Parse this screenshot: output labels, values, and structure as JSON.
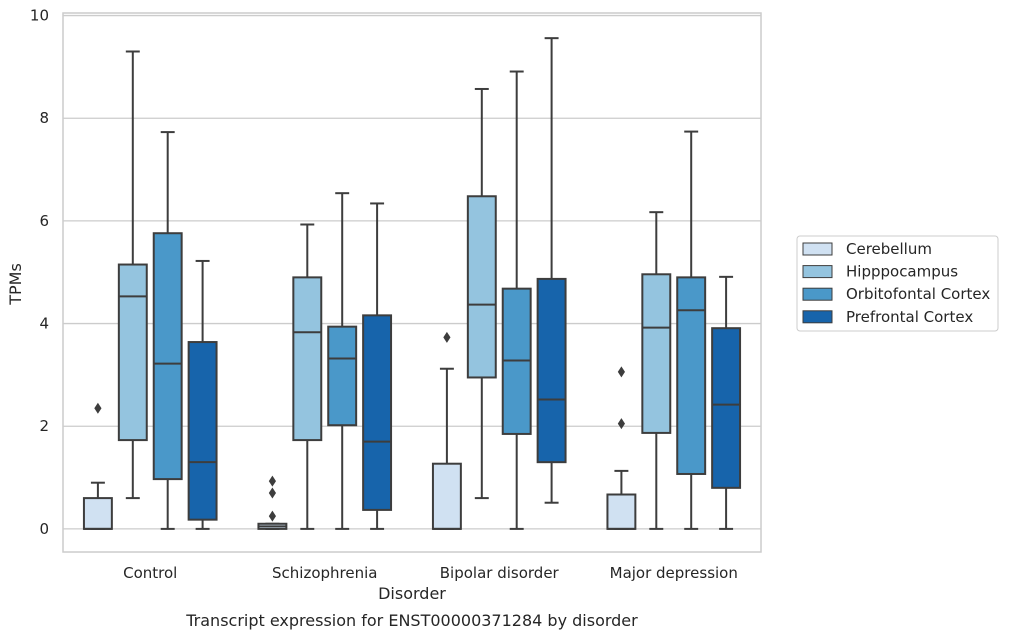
{
  "chart_data": {
    "type": "box",
    "title": "",
    "caption": "Transcript expression for ENST00000371284 by disorder",
    "xlabel": "Disorder",
    "ylabel": "TPMs",
    "ylim": [
      -0.45,
      10.05
    ],
    "yticks": [
      0,
      2,
      4,
      6,
      8,
      10
    ],
    "grid": "horizontal",
    "legend_placement": "right",
    "categories": [
      "Control",
      "Schizophrenia",
      "Bipolar disorder",
      "Major depression"
    ],
    "series": [
      {
        "name": "Cerebellum",
        "color": "#d0e1f2",
        "boxes": [
          {
            "whisker_low": 0,
            "q1": 0,
            "median": 0,
            "q3": 0.6,
            "whisker_high": 0.9,
            "outliers": [
              2.35
            ]
          },
          {
            "whisker_low": 0,
            "q1": 0,
            "median": 0.05,
            "q3": 0.1,
            "whisker_high": 0.1,
            "outliers": [
              0.25,
              0.7,
              0.93
            ]
          },
          {
            "whisker_low": 0,
            "q1": 0,
            "median": 0,
            "q3": 1.27,
            "whisker_high": 3.12,
            "outliers": [
              3.73
            ]
          },
          {
            "whisker_low": 0,
            "q1": 0,
            "median": 0,
            "q3": 0.67,
            "whisker_high": 1.13,
            "outliers": [
              2.05,
              3.06
            ]
          }
        ]
      },
      {
        "name": "Hipppocampus",
        "color": "#94c4df",
        "boxes": [
          {
            "whisker_low": 0.6,
            "q1": 1.73,
            "median": 4.53,
            "q3": 5.15,
            "whisker_high": 9.3,
            "outliers": []
          },
          {
            "whisker_low": 0,
            "q1": 1.73,
            "median": 3.83,
            "q3": 4.9,
            "whisker_high": 5.93,
            "outliers": []
          },
          {
            "whisker_low": 0.6,
            "q1": 2.95,
            "median": 4.37,
            "q3": 6.48,
            "whisker_high": 8.57,
            "outliers": []
          },
          {
            "whisker_low": 0,
            "q1": 1.87,
            "median": 3.92,
            "q3": 4.96,
            "whisker_high": 6.17,
            "outliers": []
          }
        ]
      },
      {
        "name": "Orbitofontal Cortex",
        "color": "#4a98c9",
        "boxes": [
          {
            "whisker_low": 0,
            "q1": 0.97,
            "median": 3.22,
            "q3": 5.76,
            "whisker_high": 7.73,
            "outliers": []
          },
          {
            "whisker_low": 0,
            "q1": 2.02,
            "median": 3.32,
            "q3": 3.94,
            "whisker_high": 6.54,
            "outliers": []
          },
          {
            "whisker_low": 0,
            "q1": 1.85,
            "median": 3.28,
            "q3": 4.68,
            "whisker_high": 8.91,
            "outliers": []
          },
          {
            "whisker_low": 0,
            "q1": 1.07,
            "median": 4.26,
            "q3": 4.9,
            "whisker_high": 7.74,
            "outliers": []
          }
        ]
      },
      {
        "name": "Prefrontal Cortex",
        "color": "#1764ab",
        "boxes": [
          {
            "whisker_low": 0,
            "q1": 0.18,
            "median": 1.3,
            "q3": 3.64,
            "whisker_high": 5.22,
            "outliers": []
          },
          {
            "whisker_low": 0,
            "q1": 0.37,
            "median": 1.7,
            "q3": 4.16,
            "whisker_high": 6.34,
            "outliers": []
          },
          {
            "whisker_low": 0.51,
            "q1": 1.3,
            "median": 2.52,
            "q3": 4.87,
            "whisker_high": 9.56,
            "outliers": []
          },
          {
            "whisker_low": 0,
            "q1": 0.8,
            "median": 2.42,
            "q3": 3.91,
            "whisker_high": 4.91,
            "outliers": []
          }
        ]
      }
    ]
  }
}
